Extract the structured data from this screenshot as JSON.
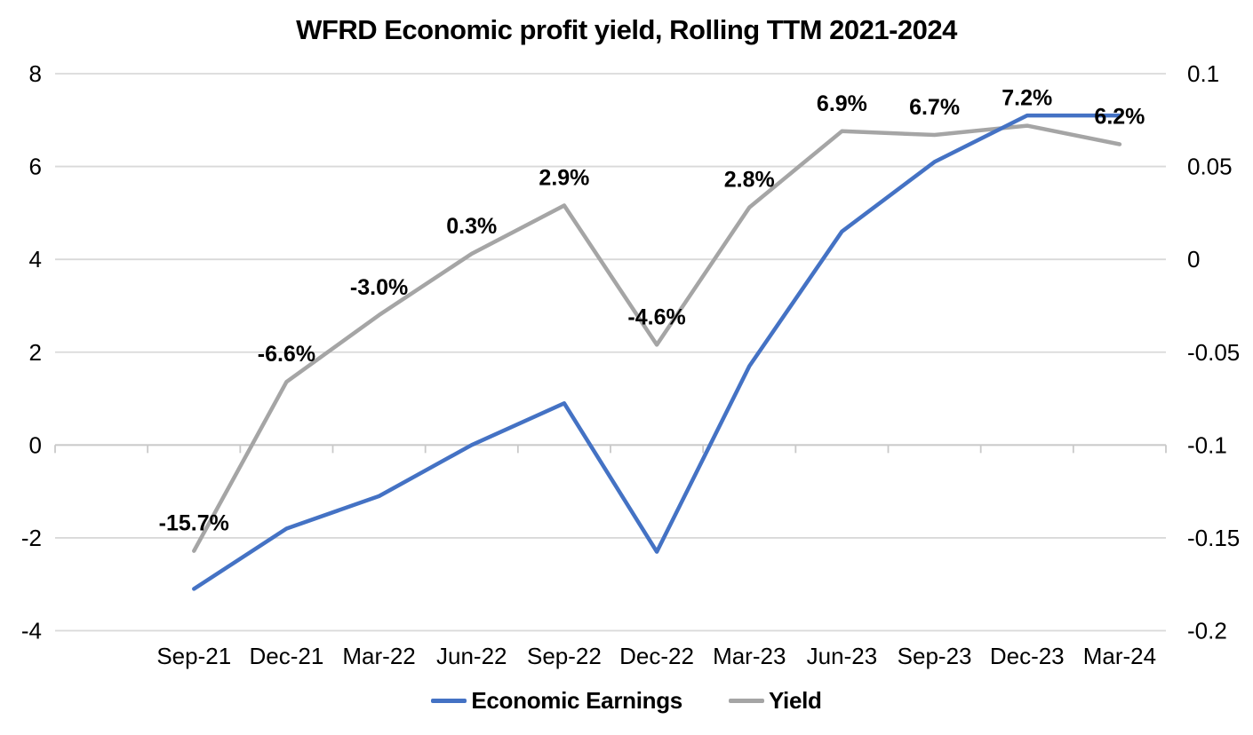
{
  "title": "WFRD Economic profit yield, Rolling TTM 2021-2024",
  "colors": {
    "economic_earnings_line": "#4472C4",
    "yield_line": "#A5A5A5",
    "gridline": "#D9D9D9",
    "axis_line": "#C9C9C9",
    "text": "#000000",
    "background": "#FFFFFF"
  },
  "legend": [
    {
      "label": "Economic Earnings",
      "color": "#4472C4"
    },
    {
      "label": "Yield",
      "color": "#A5A5A5"
    }
  ],
  "chart_data": {
    "type": "line",
    "title": "WFRD Economic profit yield, Rolling TTM 2021-2024",
    "categories": [
      "Sep-21",
      "Dec-21",
      "Mar-22",
      "Jun-22",
      "Sep-22",
      "Dec-22",
      "Mar-23",
      "Jun-23",
      "Sep-23",
      "Dec-23",
      "Mar-24"
    ],
    "series": [
      {
        "name": "Economic Earnings",
        "axis": "left",
        "color": "#4472C4",
        "values": [
          -3.1,
          -1.8,
          -1.1,
          0.0,
          0.9,
          -2.3,
          1.7,
          4.6,
          6.1,
          7.1,
          7.1
        ]
      },
      {
        "name": "Yield",
        "axis": "right",
        "color": "#A5A5A5",
        "values": [
          -0.157,
          -0.066,
          -0.03,
          0.003,
          0.029,
          -0.046,
          0.028,
          0.069,
          0.067,
          0.072,
          0.062
        ],
        "data_labels": [
          "-15.7%",
          "-6.6%",
          "-3.0%",
          "0.3%",
          "2.9%",
          "-4.6%",
          "2.8%",
          "6.9%",
          "6.7%",
          "7.2%",
          "6.2%"
        ]
      }
    ],
    "left_axis": {
      "tick_labels": [
        "8",
        "6",
        "4",
        "2",
        "0",
        "-2",
        "-4"
      ],
      "range": [
        -4,
        8
      ]
    },
    "right_axis": {
      "tick_labels": [
        "0.1",
        "0.05",
        "0",
        "-0.05",
        "-0.1",
        "-0.15",
        "-0.2"
      ],
      "range": [
        -0.2,
        0.1
      ]
    },
    "grid": true,
    "legend_position": "bottom",
    "xlabel": "",
    "ylabel": ""
  }
}
